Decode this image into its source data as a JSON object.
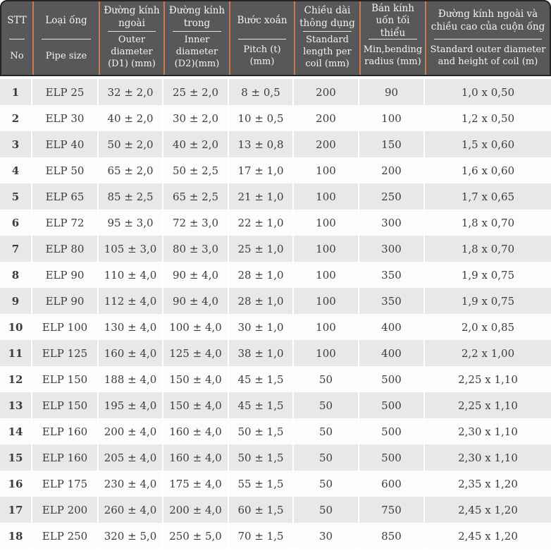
{
  "colors": {
    "header_bg": "#58585a",
    "header_border": "#242424",
    "divider_orange": "#cc7a4a",
    "header_text": "#f4f4f4",
    "row_alt": "#e8e8e8",
    "row_base": "#fcfcfc",
    "body_text": "#3c3c3c"
  },
  "table": {
    "columns": [
      {
        "id": "stt",
        "vn": "STT",
        "en": "No"
      },
      {
        "id": "pipe-size",
        "vn": "Loại ống",
        "en": "Pipe size"
      },
      {
        "id": "outer-diameter",
        "vn": "Đường kính ngoài",
        "en": "Outer diameter (D1) (mm)"
      },
      {
        "id": "inner-diameter",
        "vn": "Đường kính trong",
        "en": "Inner diameter (D2)(mm)"
      },
      {
        "id": "pitch",
        "vn": "Bước xoắn",
        "en": "Pitch (t)(mm)"
      },
      {
        "id": "std-length",
        "vn": "Chiều dài thông dụng",
        "en": "Standard length per coil (mm)"
      },
      {
        "id": "min-bending",
        "vn": "Bán kính uốn tối thiểu",
        "en": "Min,bending radius (mm)"
      },
      {
        "id": "coil-size",
        "vn": "Đường kính ngoài và chiều cao của cuộn ống",
        "en": "Standard outer diameter and height of coil (m)"
      }
    ],
    "rows": [
      [
        "1",
        "ELP 25",
        "32 ± 2,0",
        "25 ± 2,0",
        "8 ± 0,5",
        "200",
        "90",
        "1,0 x 0,50"
      ],
      [
        "2",
        "ELP 30",
        "40 ± 2,0",
        "30 ± 2,0",
        "10 ± 0,5",
        "200",
        "100",
        "1,2 x 0,50"
      ],
      [
        "3",
        "ELP 40",
        "50 ± 2,0",
        "40 ± 2,0",
        "13 ± 0,8",
        "200",
        "150",
        "1,5 x 0,60"
      ],
      [
        "4",
        "ELP 50",
        "65 ± 2,0",
        "50 ± 2,5",
        "17 ± 1,0",
        "100",
        "200",
        "1,6 x 0,60"
      ],
      [
        "5",
        "ELP 65",
        "85 ± 2,5",
        "65 ± 2,5",
        "21 ± 1,0",
        "100",
        "250",
        "1,7 x 0,65"
      ],
      [
        "6",
        "ELP 72",
        "95 ± 3,0",
        "72 ± 3,0",
        "22 ± 1,0",
        "100",
        "300",
        "1,8 x 0,70"
      ],
      [
        "7",
        "ELP 80",
        "105 ± 3,0",
        "80 ± 3,0",
        "25 ± 1,0",
        "100",
        "300",
        "1,8 x 0,70"
      ],
      [
        "8",
        "ELP 90",
        "110 ± 4,0",
        "90 ± 4,0",
        "28 ± 1,0",
        "100",
        "350",
        "1,9 x 0,75"
      ],
      [
        "9",
        "ELP 90",
        "112 ± 4,0",
        "90 ± 4,0",
        "28 ± 1,0",
        "100",
        "350",
        "1,9 x 0,75"
      ],
      [
        "10",
        "ELP 100",
        "130 ± 4,0",
        "100 ± 4,0",
        "30 ± 1,0",
        "100",
        "400",
        "2,0 x 0,85"
      ],
      [
        "11",
        "ELP 125",
        "160 ± 4,0",
        "125 ± 4,0",
        "38 ± 1,0",
        "100",
        "400",
        "2,2 x 1,00"
      ],
      [
        "12",
        "ELP 150",
        "188 ± 4,0",
        "150 ± 4,0",
        "45 ± 1,5",
        "50",
        "500",
        "2,25 x 1,10"
      ],
      [
        "13",
        "ELP 150",
        "195 ± 4,0",
        "150 ± 4,0",
        "45 ± 1,5",
        "50",
        "500",
        "2,25 x 1,10"
      ],
      [
        "14",
        "ELP 160",
        "200 ± 4,0",
        "160 ± 4,0",
        "50 ± 1,5",
        "50",
        "500",
        "2,30 x 1,10"
      ],
      [
        "15",
        "ELP 160",
        "205 ± 4,0",
        "160 ± 4,0",
        "50 ± 1,5",
        "50",
        "500",
        "2,30 x 1,10"
      ],
      [
        "16",
        "ELP 175",
        "230 ± 4,0",
        "175 ± 4,0",
        "55 ± 1,5",
        "50",
        "600",
        "2,35 x 1,20"
      ],
      [
        "17",
        "ELP 200",
        "260 ± 4,0",
        "200 ± 4,0",
        "60 ± 1,5",
        "50",
        "750",
        "2,45 x 1,20"
      ],
      [
        "18",
        "ELP 250",
        "320 ± 5,0",
        "250 ± 5,0",
        "70 ± 1,5",
        "30",
        "850",
        "2,45 x 1,20"
      ]
    ]
  }
}
